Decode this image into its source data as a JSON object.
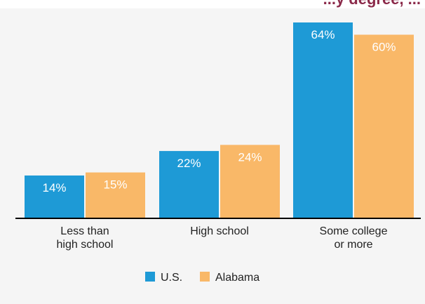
{
  "chart_data": {
    "type": "bar",
    "title": "...y degree, ...",
    "categories": [
      "Less than\nhigh school",
      "High school",
      "Some college\nor more"
    ],
    "series": [
      {
        "name": "U.S.",
        "values": [
          14,
          22,
          64
        ],
        "labels": [
          "14%",
          "22%",
          "64%"
        ],
        "color": "#1e9ad6"
      },
      {
        "name": "Alabama",
        "values": [
          15,
          24,
          60
        ],
        "labels": [
          "15%",
          "24%",
          "60%"
        ],
        "color": "#f9b868"
      }
    ],
    "ylim": [
      0,
      65
    ],
    "xlabel": "",
    "ylabel": "",
    "grid": false,
    "legend": "bottom-center",
    "data_label_color": "#ffffff",
    "axis_color": "#000000"
  }
}
